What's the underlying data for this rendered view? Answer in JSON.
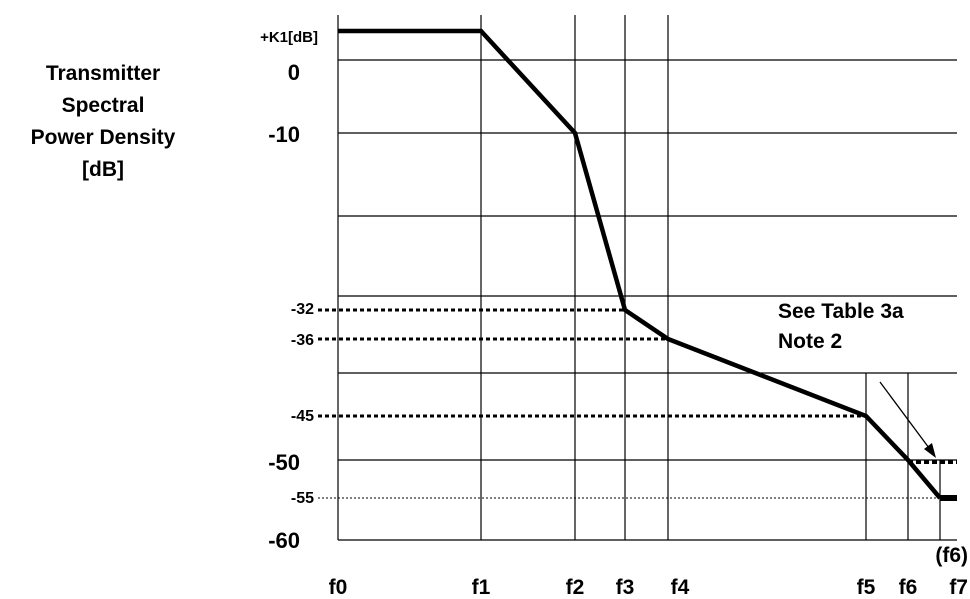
{
  "chart_data": {
    "type": "line",
    "title": "",
    "ylabel_lines": [
      "Transmitter",
      "Spectral",
      "Power Density",
      "[dB]"
    ],
    "xlabel": "",
    "x_ticks": [
      "f0",
      "f1",
      "f2",
      "f3",
      "f4",
      "f5",
      "f6",
      "f7"
    ],
    "x_tick_extra": "(f6)",
    "y_tick_labels": [
      {
        "label": "+K1[dB]",
        "value": 4
      },
      {
        "label": "0",
        "value": 0
      },
      {
        "label": "-10",
        "value": -10
      },
      {
        "label": "-32",
        "value": -32
      },
      {
        "label": "-36",
        "value": -36
      },
      {
        "label": "-45",
        "value": -45
      },
      {
        "label": "-50",
        "value": -50
      },
      {
        "label": "-55",
        "value": -55
      },
      {
        "label": "-60",
        "value": -60
      }
    ],
    "ylim": [
      -60,
      4
    ],
    "grid": true,
    "mask_points": [
      {
        "x": "f0",
        "y": "+K1"
      },
      {
        "x": "f1",
        "y": "+K1"
      },
      {
        "x": "f2",
        "y": -10
      },
      {
        "x": "f3",
        "y": -32
      },
      {
        "x": "f4",
        "y": -36
      },
      {
        "x": "f5",
        "y": -45
      },
      {
        "x": "f6",
        "y": -50
      },
      {
        "x": "(f6)",
        "y": -55
      },
      {
        "x": "f7",
        "y": -55
      }
    ],
    "dashed_extension": {
      "from": "f6",
      "to": "f7",
      "y": -50
    },
    "annotation": [
      "See Table 3a",
      "Note 2"
    ]
  }
}
